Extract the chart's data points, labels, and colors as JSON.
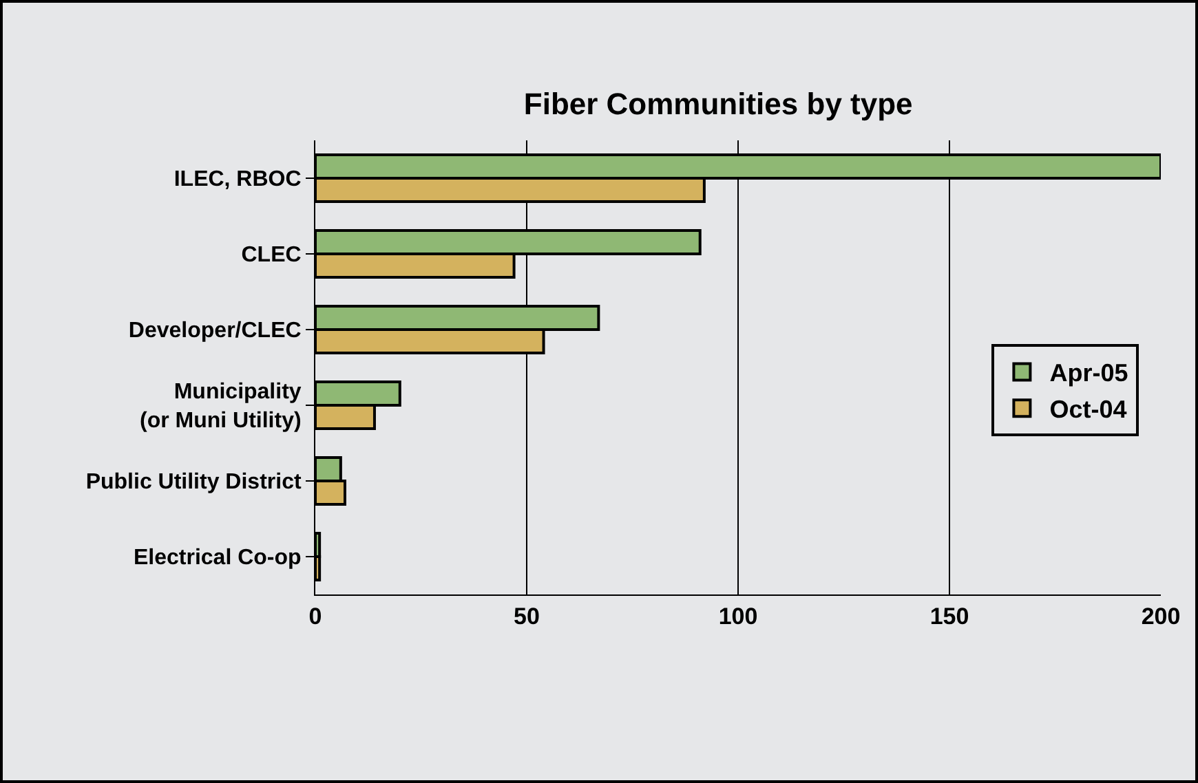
{
  "chart_data": {
    "type": "bar",
    "orientation": "horizontal",
    "title": "Fiber Communities by type",
    "categories": [
      "ILEC, RBOC",
      "CLEC",
      "Developer/CLEC",
      "Municipality\n(or Muni Utility)",
      "Public Utility District",
      "Electrical Co-op"
    ],
    "series": [
      {
        "name": "Apr-05",
        "color": "#8fb874",
        "values": [
          200,
          91,
          67,
          20,
          6,
          1
        ]
      },
      {
        "name": "Oct-04",
        "color": "#d4b25e",
        "values": [
          92,
          47,
          54,
          14,
          7,
          1
        ]
      }
    ],
    "xlim": [
      0,
      200
    ],
    "xticks": [
      0,
      50,
      100,
      150,
      200
    ],
    "grid": "x",
    "legend": "right"
  }
}
